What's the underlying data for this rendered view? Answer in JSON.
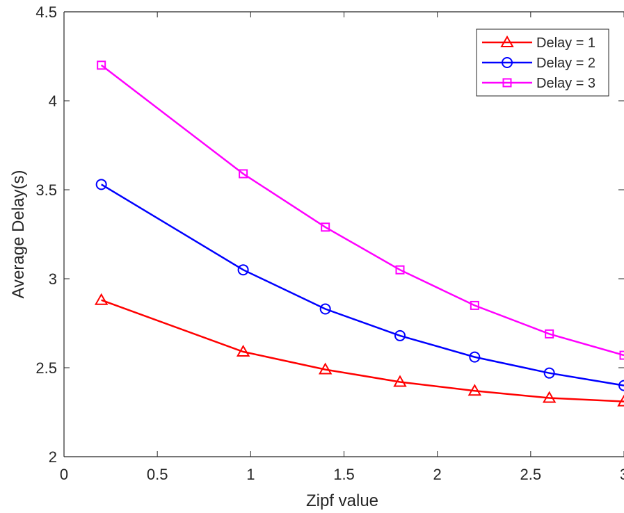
{
  "chart_data": {
    "type": "line",
    "xlabel": "Zipf value",
    "ylabel": "Average Delay(s)",
    "xlim": [
      0,
      3
    ],
    "ylim": [
      2,
      4.5
    ],
    "xticks": [
      0,
      0.5,
      1,
      1.5,
      2,
      2.5,
      3
    ],
    "xtick_labels": [
      "0",
      "0.5",
      "1",
      "1.5",
      "2",
      "2.5",
      "3"
    ],
    "yticks": [
      2,
      2.5,
      3,
      3.5,
      4,
      4.5
    ],
    "ytick_labels": [
      "2",
      "2.5",
      "3",
      "3.5",
      "4",
      "4.5"
    ],
    "grid": false,
    "legend_position": "top-right",
    "x": [
      0.2,
      0.96,
      1.4,
      1.8,
      2.2,
      2.6,
      3.0
    ],
    "series": [
      {
        "name": "Delay = 1",
        "color": "#ff0000",
        "marker": "triangle",
        "values": [
          2.88,
          2.59,
          2.49,
          2.42,
          2.37,
          2.33,
          2.31
        ]
      },
      {
        "name": "Delay = 2",
        "color": "#0000ff",
        "marker": "circle",
        "values": [
          3.53,
          3.05,
          2.83,
          2.68,
          2.56,
          2.47,
          2.4
        ]
      },
      {
        "name": "Delay = 3",
        "color": "#ff00ff",
        "marker": "square",
        "values": [
          4.2,
          3.59,
          3.29,
          3.05,
          2.85,
          2.69,
          2.57
        ]
      }
    ]
  }
}
